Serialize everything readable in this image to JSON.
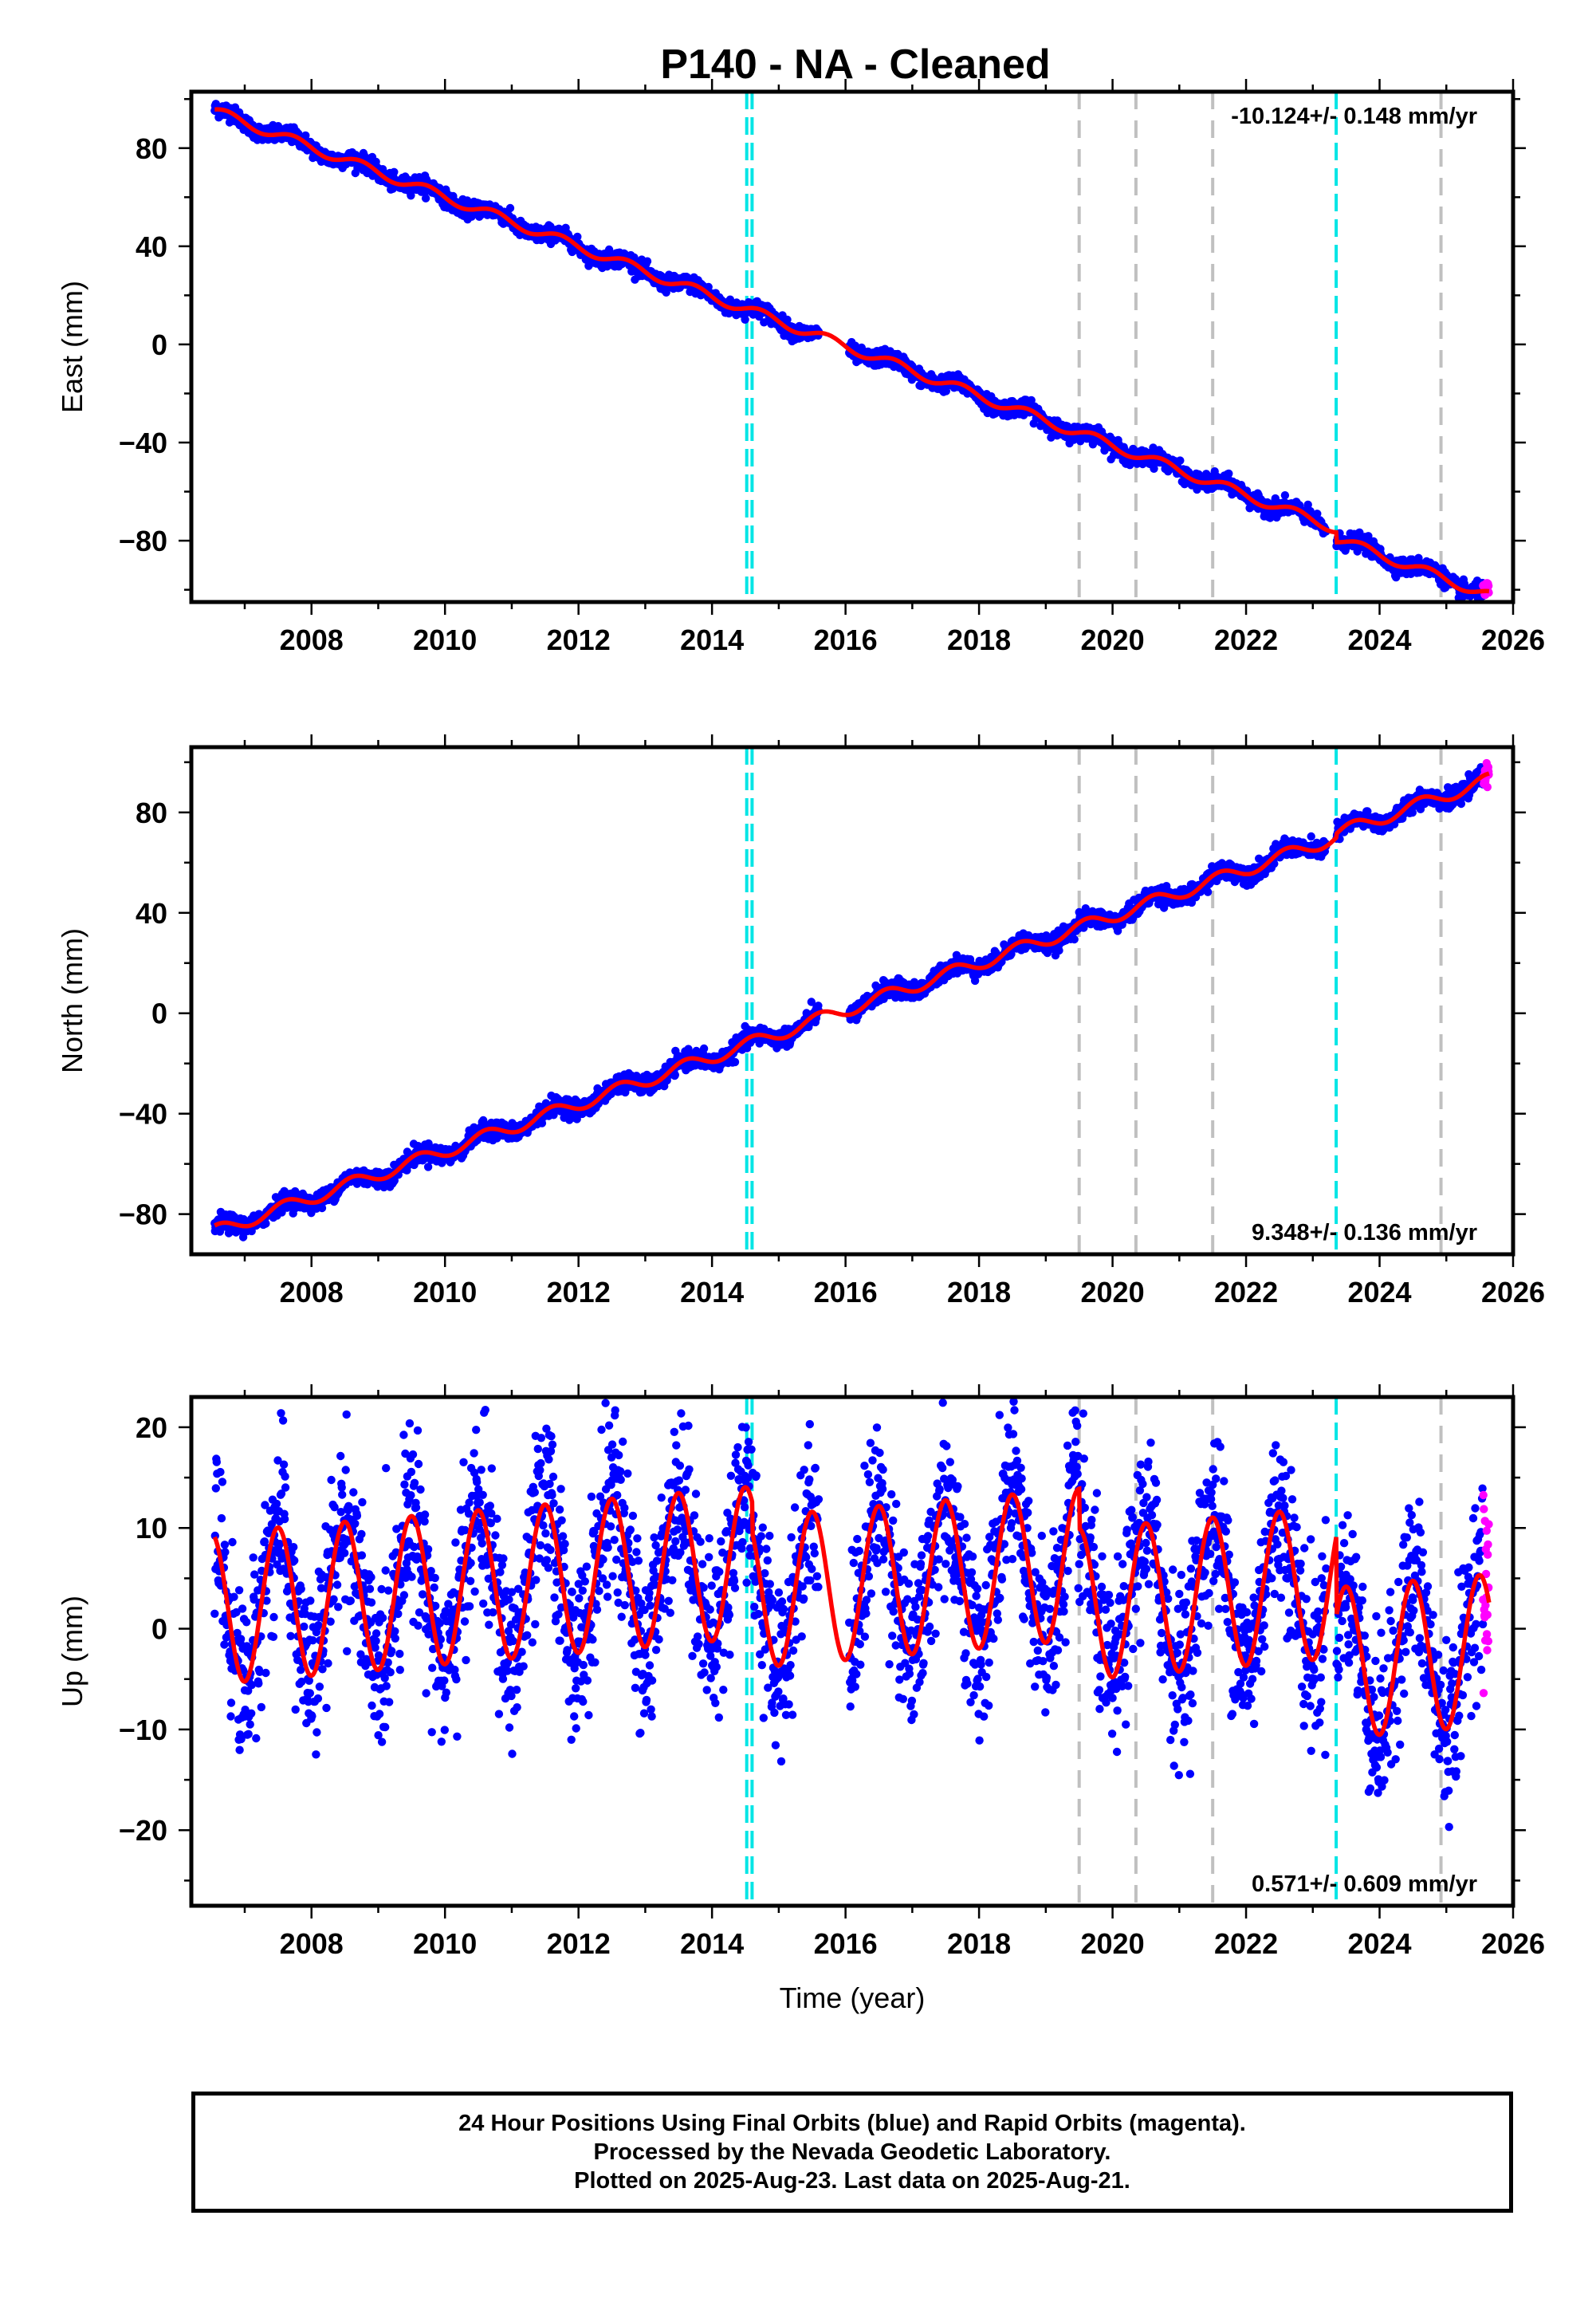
{
  "title": "P140  - NA - Cleaned",
  "colors": {
    "final_orbits": "#0000ff",
    "rapid_orbits": "#ff00ff",
    "model": "#ff0000",
    "event_cyan": "#00e5e5",
    "event_gray": "#c0c0c0"
  },
  "chart_data": [
    {
      "type": "scatter",
      "panel": "east",
      "xlabel": "",
      "ylabel": "East (mm)",
      "xlim": [
        2006.2,
        2026.0
      ],
      "ylim": [
        -105,
        103
      ],
      "xticks": [
        2008,
        2010,
        2012,
        2014,
        2016,
        2018,
        2020,
        2022,
        2024,
        2026
      ],
      "yticks": [
        -80,
        -40,
        0,
        40,
        80
      ],
      "rate_label": "-10.124+/- 0.148 mm/yr",
      "rate_label_position": "top-right",
      "series": [
        {
          "role": "final_orbits",
          "color": "#0000ff",
          "start": 2006.55,
          "end": 2025.55
        },
        {
          "role": "rapid_orbits",
          "color": "#ff00ff",
          "start": 2025.55,
          "end": 2025.64
        },
        {
          "role": "model",
          "color": "#ff0000"
        }
      ],
      "model": {
        "t0": 2006.55,
        "y0": 95.0,
        "rate": -10.124,
        "annual_amplitude": 2.0,
        "annual_phase": 0.4,
        "offsets": [
          {
            "year": 2014.6,
            "value": 0.0
          },
          {
            "year": 2023.35,
            "value": -4.0
          }
        ],
        "gap": [
          2015.6,
          2016.05
        ]
      },
      "noise": 1.6,
      "vlines_cyan": [
        2014.52,
        2014.6,
        2023.35
      ],
      "vlines_gray": [
        2019.5,
        2020.35,
        2021.5,
        2024.92
      ]
    },
    {
      "type": "scatter",
      "panel": "north",
      "xlabel": "",
      "ylabel": "North (mm)",
      "xlim": [
        2006.2,
        2026.0
      ],
      "ylim": [
        -96,
        106
      ],
      "xticks": [
        2008,
        2010,
        2012,
        2014,
        2016,
        2018,
        2020,
        2022,
        2024,
        2026
      ],
      "yticks": [
        -80,
        -40,
        0,
        40,
        80
      ],
      "rate_label": "9.348+/- 0.136 mm/yr",
      "rate_label_position": "bottom-right",
      "series": [
        {
          "role": "final_orbits",
          "color": "#0000ff",
          "start": 2006.55,
          "end": 2025.55
        },
        {
          "role": "rapid_orbits",
          "color": "#ff00ff",
          "start": 2025.55,
          "end": 2025.64
        },
        {
          "role": "model",
          "color": "#ff0000"
        }
      ],
      "model": {
        "t0": 2006.55,
        "y0": -87.0,
        "rate": 9.348,
        "annual_amplitude": 2.6,
        "annual_phase": 1.2,
        "offsets": [
          {
            "year": 2014.6,
            "value": 0.0
          },
          {
            "year": 2023.35,
            "value": 1.5
          }
        ],
        "gap": [
          2015.6,
          2016.05
        ]
      },
      "noise": 1.7,
      "vlines_cyan": [
        2014.52,
        2014.6,
        2023.35
      ],
      "vlines_gray": [
        2019.5,
        2020.35,
        2021.5,
        2024.92
      ]
    },
    {
      "type": "scatter",
      "panel": "up",
      "xlabel": "Time (year)",
      "ylabel": "Up (mm)",
      "xlim": [
        2006.2,
        2026.0
      ],
      "ylim": [
        -27.5,
        23
      ],
      "xticks": [
        2008,
        2010,
        2012,
        2014,
        2016,
        2018,
        2020,
        2022,
        2024,
        2026
      ],
      "yticks": [
        -20,
        -10,
        0,
        10,
        20
      ],
      "rate_label": "0.571+/- 0.609 mm/yr",
      "rate_label_position": "bottom-right",
      "series": [
        {
          "role": "final_orbits",
          "color": "#0000ff",
          "start": 2006.55,
          "end": 2025.55
        },
        {
          "role": "rapid_orbits",
          "color": "#ff00ff",
          "start": 2025.55,
          "end": 2025.64
        },
        {
          "role": "model",
          "color": "#ff0000"
        }
      ],
      "model": {
        "t0": 2006.55,
        "y0": 2.0,
        "rate": 0.571,
        "annual_amplitude": 7.5,
        "annual_phase": 1.9,
        "offsets": [
          {
            "year": 2014.6,
            "value": -3.0
          },
          {
            "year": 2019.5,
            "value": -4.0
          },
          {
            "year": 2023.35,
            "value": -8.0
          }
        ],
        "gap": [
          2015.6,
          2016.05
        ]
      },
      "noise": 4.2,
      "vlines_cyan": [
        2014.52,
        2014.6,
        2023.35
      ],
      "vlines_gray": [
        2019.5,
        2020.35,
        2021.5,
        2024.92
      ]
    }
  ],
  "footer": {
    "line1": "24 Hour Positions Using Final Orbits (blue) and Rapid Orbits (magenta).",
    "line2": "Processed by the Nevada Geodetic Laboratory.",
    "line3": "Plotted on 2025-Aug-23. Last data on 2025-Aug-21."
  }
}
